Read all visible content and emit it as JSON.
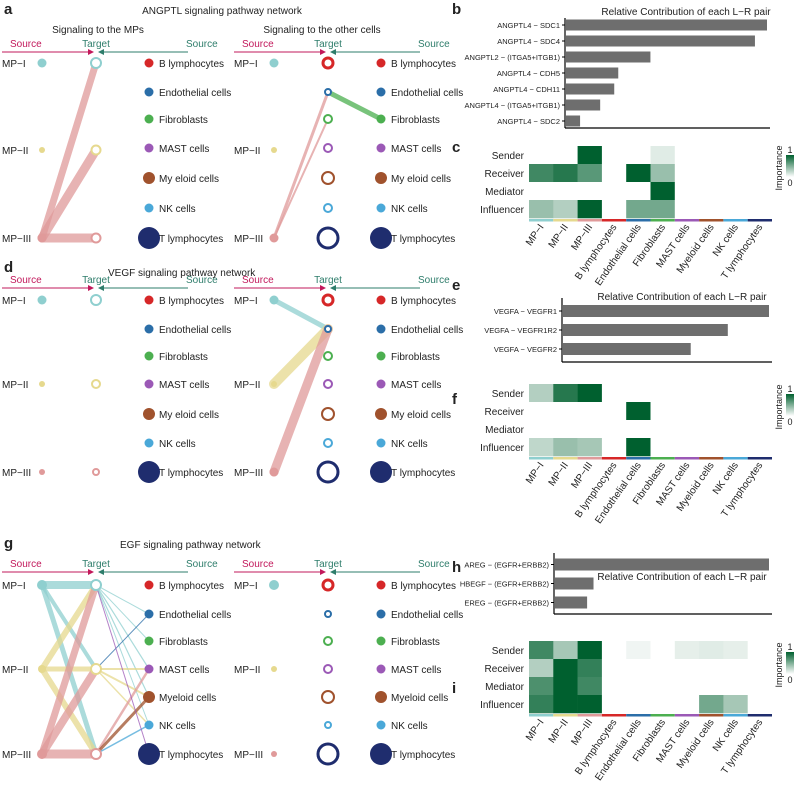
{
  "panel_labels": [
    "a",
    "b",
    "c",
    "d",
    "e",
    "f",
    "g",
    "h",
    "i"
  ],
  "colors": {
    "source_arrow": "#c2185b",
    "target_arrow": "#2e7d6b",
    "mp1": "#8fcfcf",
    "mp2": "#e6d98e",
    "mp3": "#e09a9a",
    "b_lymph": "#d62728",
    "endothelial": "#2b6ea8",
    "fibroblasts": "#4caf50",
    "mast": "#9b59b6",
    "myeloid": "#a0522d",
    "nk": "#4aa8d8",
    "t_lymph": "#1f2d6e",
    "bar": "#6e6e6e",
    "heat_low": "#ffffff",
    "heat_high": "#00602f"
  },
  "cell_types": [
    "B lymphocytes",
    "Endothelial cells",
    "Fibroblasts",
    "MAST cells",
    "Myeloid cells",
    "NK cells",
    "T lymphocytes"
  ],
  "cell_types_a_right": [
    "B lymphocytes",
    "Endothelial cells",
    "Fibroblasts",
    "MAST cells",
    "My eloid cells",
    "NK cells",
    "T lymphocytes"
  ],
  "cell_types_d_right": [
    "B lymphocytes",
    "Endothelial cells",
    "Fibroblasts",
    "MAST cells",
    "My eloid cells",
    "NK cells",
    "T lymphocytes"
  ],
  "mp_labels": [
    "MP−I",
    "MP−II",
    "MP−III"
  ],
  "header": {
    "source": "Source",
    "target": "Target"
  },
  "networks": {
    "a": {
      "title": "ANGPTL signaling pathway network",
      "left_subtitle": "Signaling to the MPs",
      "right_subtitle": "Signaling to the other cells"
    },
    "d": {
      "title": "VEGF signaling pathway network"
    },
    "g": {
      "title": "EGF signaling pathway network"
    }
  },
  "heatmap": {
    "rows": [
      "Sender",
      "Receiver",
      "Mediator",
      "Influencer"
    ],
    "cols": [
      "MP−I",
      "MP−II",
      "MP−III",
      "B lymphocytes",
      "Endothelial cells",
      "Fibroblasts",
      "MAST cells",
      "Myeloid cells",
      "NK cells",
      "T lymphocytes"
    ],
    "legend_title": "Importance",
    "legend_max": "1",
    "legend_min": "0"
  },
  "chart_data": [
    {
      "panel": "b",
      "type": "bar",
      "orientation": "horizontal",
      "title": "Relative Contribution of each L−R pair",
      "categories": [
        "ANGPTL4 − SDC1",
        "ANGPTL4 − SDC4",
        "ANGPTL2 − (ITGA5+ITGB1)",
        "ANGPTL4 − CDH5",
        "ANGPTL4 − CDH11",
        "ANGPTL4 − (ITGA5+ITGB1)",
        "ANGPTL4 − SDC2"
      ],
      "values": [
        1.0,
        0.94,
        0.42,
        0.26,
        0.24,
        0.17,
        0.07
      ],
      "xlim": [
        0,
        1
      ]
    },
    {
      "panel": "c",
      "type": "heatmap",
      "pathway": "ANGPTL",
      "rows": [
        "Sender",
        "Receiver",
        "Mediator",
        "Influencer"
      ],
      "cols": [
        "MP−I",
        "MP−II",
        "MP−III",
        "B lymphocytes",
        "Endothelial cells",
        "Fibroblasts",
        "MAST cells",
        "Myeloid cells",
        "NK cells",
        "T lymphocytes"
      ],
      "values": [
        [
          0,
          0,
          1,
          0,
          0,
          0.12,
          0,
          0,
          0,
          0
        ],
        [
          0.75,
          0.85,
          0.65,
          0,
          1,
          0.4,
          0,
          0,
          0,
          0
        ],
        [
          0,
          0,
          0,
          0,
          0,
          1,
          0,
          0,
          0,
          0
        ],
        [
          0.4,
          0.3,
          1,
          0,
          0.55,
          0.55,
          0,
          0,
          0,
          0
        ]
      ]
    },
    {
      "panel": "e",
      "type": "bar",
      "orientation": "horizontal",
      "title": "Relative Contribution of each L−R pair",
      "categories": [
        "VEGFA − VEGFR1",
        "VEGFA − VEGFR1R2",
        "VEGFA − VEGFR2"
      ],
      "values": [
        1.0,
        0.8,
        0.62
      ],
      "xlim": [
        0,
        1
      ]
    },
    {
      "panel": "f",
      "type": "heatmap",
      "pathway": "VEGF",
      "rows": [
        "Sender",
        "Receiver",
        "Mediator",
        "Influencer"
      ],
      "cols": [
        "MP−I",
        "MP−II",
        "MP−III",
        "B lymphocytes",
        "Endothelial cells",
        "Fibroblasts",
        "MAST cells",
        "Myeloid cells",
        "NK cells",
        "T lymphocytes"
      ],
      "values": [
        [
          0.3,
          0.85,
          1,
          0,
          0,
          0,
          0,
          0,
          0,
          0
        ],
        [
          0,
          0,
          0,
          0,
          1,
          0,
          0,
          0,
          0,
          0
        ],
        [
          0,
          0,
          0,
          0,
          0,
          0,
          0,
          0,
          0,
          0
        ],
        [
          0.25,
          0.4,
          0.35,
          0,
          1,
          0,
          0,
          0,
          0,
          0
        ]
      ]
    },
    {
      "panel": "h",
      "type": "bar",
      "orientation": "horizontal",
      "title": "Relative Contribution of each L−R pair",
      "categories": [
        "AREG − (EGFR+ERBB2)",
        "HBEGF − (EGFR+ERBB2)",
        "EREG − (EGFR+ERBB2)"
      ],
      "values": [
        1.0,
        0.18,
        0.15
      ],
      "xlim": [
        0,
        1
      ]
    },
    {
      "panel": "i",
      "type": "heatmap",
      "pathway": "EGF",
      "rows": [
        "Sender",
        "Receiver",
        "Mediator",
        "Influencer"
      ],
      "cols": [
        "MP−I",
        "MP−II",
        "MP−III",
        "B lymphocytes",
        "Endothelial cells",
        "Fibroblasts",
        "MAST cells",
        "Myeloid cells",
        "NK cells",
        "T lymphocytes"
      ],
      "values": [
        [
          0.75,
          0.35,
          1,
          0,
          0.06,
          0,
          0.1,
          0.12,
          0.1,
          0
        ],
        [
          0.3,
          1,
          0.8,
          0,
          0,
          0,
          0,
          0,
          0,
          0
        ],
        [
          0.7,
          1,
          0.75,
          0,
          0,
          0,
          0,
          0,
          0,
          0
        ],
        [
          0.8,
          1,
          1,
          0,
          0,
          0,
          0,
          0.55,
          0.35,
          0
        ]
      ]
    }
  ]
}
